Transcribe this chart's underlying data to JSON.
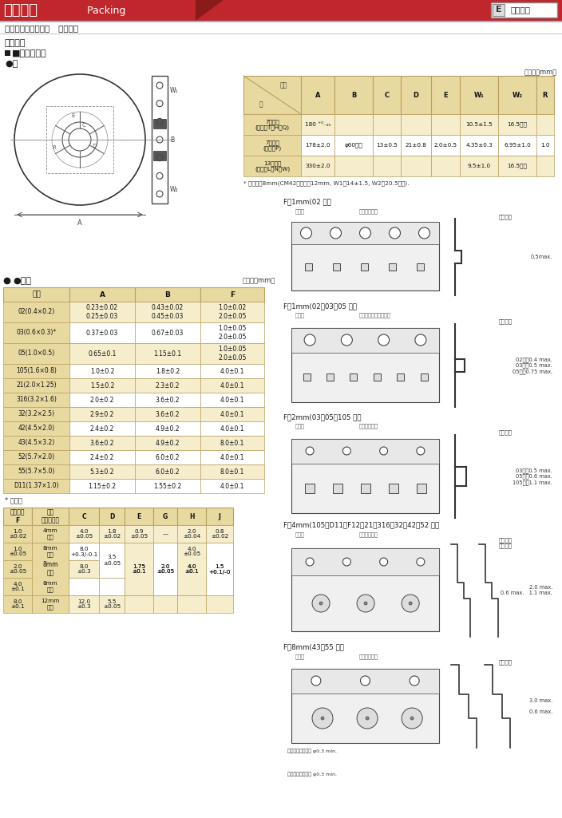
{
  "title_cn": "关于包装",
  "title_en": " Packing",
  "company": "佳益科技",
  "subtitle": "多层片状陶瓷电容器   包装形式",
  "section_biandai": "（编带）",
  "section_shape": "■形状・尺寸",
  "section_juan": "●卷",
  "unit_mm": "（单位：mm）",
  "t1_header": [
    "记号\n卷",
    "A",
    "B",
    "C",
    "D",
    "E",
    "W₁",
    "W₂",
    "R"
  ],
  "t1_rows": [
    [
      "7英寸盘\n(记号：T、H、Q)",
      "180 ⁺⁰₋₂₀",
      "",
      "",
      "",
      "",
      "10.5±1.5",
      "16.5以下",
      ""
    ],
    [
      "7英寸盘\n(记号：P)",
      "178±2.0",
      "φ60以上",
      "13±0.5",
      "21±0.8",
      "2.0±0.5",
      "4.35±0.3",
      "6.95±1.0",
      "1.0"
    ],
    [
      "13英寸盘\n(记号：L、N、W)",
      "330±2.0",
      "",
      "",
      "",
      "",
      "9.5±1.0",
      "16.5以下",
      ""
    ]
  ],
  "t1_note": "* 载带宽为8mm(CM42型以上为12mm, W1：14±1.5, W2：20.5以下).",
  "section_daizai": "●载带",
  "t2_header": [
    "形式",
    "A",
    "B",
    "F"
  ],
  "t2_rows": [
    [
      "02(0.4×0.2)",
      "0.23±0.02\n0.25±0.03",
      "0.43±0.02\n0.45±0.03",
      "1.0±0.02\n2.0±0.05"
    ],
    [
      "03(0.6×0.3)*",
      "0.37±0.03",
      "0.67±0.03",
      "1.0±0.05\n2.0±0.05"
    ],
    [
      "05(1.0×0.5)",
      "0.65±0.1",
      "1.15±0.1",
      "1.0±0.05\n2.0±0.05"
    ],
    [
      "105(1.6×0.8)",
      "1.0±0.2",
      "1.8±0.2",
      "4.0±0.1"
    ],
    [
      "21(2.0×1.25)",
      "1.5±0.2",
      "2.3±0.2",
      "4.0±0.1"
    ],
    [
      "316(3.2×1.6)",
      "2.0±0.2",
      "3.6±0.2",
      "4.0±0.1"
    ],
    [
      "32(3.2×2.5)",
      "2.9±0.2",
      "3.6±0.2",
      "4.0±0.1"
    ],
    [
      "42(4.5×2.0)",
      "2.4±0.2",
      "4.9±0.2",
      "4.0±0.1"
    ],
    [
      "43(4.5×3.2)",
      "3.6±0.2",
      "4.9±0.2",
      "8.0±0.1"
    ],
    [
      "52(5.7×2.0)",
      "2.4±0.2",
      "6.0±0.2",
      "4.0±0.1"
    ],
    [
      "55(5.7×5.0)",
      "5.3±0.2",
      "6.0±0.2",
      "8.0±0.1"
    ],
    [
      "D11(1.37×1.0)",
      "1.15±0.2",
      "1.55±0.2",
      "4.0±0.1"
    ]
  ],
  "t2_note": "* 可选用",
  "t3_header": [
    "包装间隔\nF",
    "载带\n种类、宽度",
    "C",
    "D",
    "E",
    "G",
    "H",
    "J"
  ],
  "t3_col_widths": [
    36,
    46,
    38,
    32,
    36,
    30,
    36,
    34
  ],
  "t3_rows_data": [
    [
      [
        "1.0\n±0.02",
        1
      ],
      [
        "4mm\n塑料",
        1
      ],
      [
        "4.0\n±0.05",
        1
      ],
      [
        "1.8\n±0.02",
        1
      ],
      [
        "0.9\n±0.05",
        1
      ],
      [
        "—",
        1
      ],
      [
        "2.0\n±0.04",
        1
      ],
      [
        "0.8\n±0.02",
        1
      ]
    ],
    [
      [
        "1.0\n±0.05",
        1
      ],
      [
        "8mm\n纸带",
        3
      ],
      [
        "8.0\n+0.3/-0.1",
        1
      ],
      [
        "",
        0
      ],
      [
        "3.5\n±0.05",
        0
      ],
      [
        "",
        0
      ],
      [
        "4.0\n±0.05",
        1
      ],
      [
        "",
        0
      ]
    ],
    [
      [
        "2.0\n±0.05",
        1
      ],
      [
        "",
        0
      ],
      [
        "8.0\n±0.3",
        1
      ],
      [
        "3.5\n±0.05",
        0
      ],
      [
        "1.75\n±0.1",
        2
      ],
      [
        "2.0\n±0.05",
        2
      ],
      [
        "4.0\n±0.1",
        2
      ],
      [
        "1.5\n+0.1/-0",
        2
      ]
    ],
    [
      [
        "4.0\n±0.1",
        1
      ],
      [
        "8mm\n塑料",
        1
      ],
      [
        "",
        0
      ],
      [
        "",
        0
      ],
      [
        "",
        0
      ],
      [
        "",
        0
      ],
      [
        "",
        0
      ],
      [
        "",
        0
      ]
    ],
    [
      [
        "8.0\n±0.1",
        1
      ],
      [
        "12mm\n塑料",
        1
      ],
      [
        "12.0\n±0.3",
        1
      ],
      [
        "5.5\n±0.05",
        1
      ],
      [
        "",
        0
      ],
      [
        "",
        0
      ],
      [
        "",
        0
      ],
      [
        "",
        0
      ]
    ]
  ],
  "diag_labels": [
    "F＝1mm(02 型）",
    "F＝1mm(02、03、05 型）",
    "F＝2mm(03、05、105 型）",
    "F＝4mm(105、D11、F12、21、316、32、42、52 型）",
    "F＝8mm(43、55 型）"
  ],
  "diag_label_right": [
    "（塑料）",
    "（塑料）",
    "（塑料）",
    "（塑料）\n（塑料）",
    "（塑料）"
  ],
  "diag_size_notes": [
    "0.5max.",
    "02型：0.4 max.\n03型：0.5 max.\n05型：0.75 max.",
    "03型：0.5 max.\n05型：0.6 max.\n105型：1.1 max.",
    "2.0 max.\n0.6 max.   1.1 max.",
    "3.0 max.\n\n0.6 max."
  ],
  "colors": {
    "header_bg": "#e8d9a0",
    "header_border": "#b8a060",
    "row_bg_light": "#f5edcc",
    "row_bg_white": "#ffffff",
    "title_red": "#c0272d",
    "title_dark": "#8b0000",
    "blue_bar": "#6baed6",
    "text_dark": "#1a1a1a",
    "border": "#999999",
    "diag_bg": "#ffffff"
  }
}
